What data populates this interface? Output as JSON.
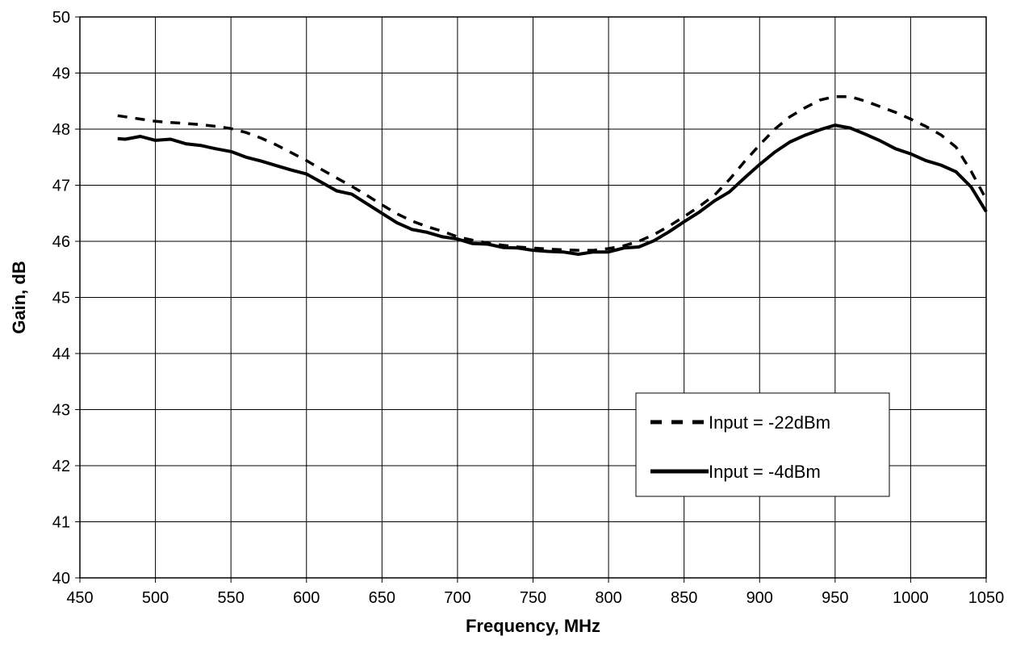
{
  "chart_data": {
    "type": "line",
    "xlabel": "Frequency, MHz",
    "ylabel": "Gain, dB",
    "xlim": [
      450,
      1050
    ],
    "ylim": [
      40,
      50
    ],
    "x_ticks": [
      "450",
      "500",
      "550",
      "600",
      "650",
      "700",
      "750",
      "800",
      "850",
      "900",
      "950",
      "1000",
      "1050"
    ],
    "y_ticks": [
      "40",
      "41",
      "42",
      "43",
      "44",
      "45",
      "46",
      "47",
      "48",
      "49",
      "50"
    ],
    "grid": true,
    "legend_position": "bottom-right",
    "series": [
      {
        "name": "Input = -22dBm",
        "style": "dashed",
        "color": "#000000",
        "x": [
          475,
          480,
          490,
          500,
          510,
          520,
          530,
          540,
          550,
          560,
          570,
          580,
          590,
          600,
          610,
          620,
          630,
          640,
          650,
          660,
          670,
          680,
          690,
          700,
          710,
          720,
          730,
          740,
          750,
          760,
          770,
          780,
          790,
          800,
          810,
          820,
          830,
          840,
          850,
          860,
          870,
          880,
          890,
          900,
          910,
          920,
          930,
          940,
          950,
          960,
          970,
          980,
          990,
          1000,
          1010,
          1020,
          1030,
          1040,
          1050
        ],
        "y": [
          48.24,
          48.22,
          48.18,
          48.14,
          48.12,
          48.1,
          48.08,
          48.05,
          48.01,
          47.94,
          47.84,
          47.72,
          47.58,
          47.44,
          47.28,
          47.13,
          46.98,
          46.82,
          46.65,
          46.49,
          46.36,
          46.26,
          46.18,
          46.08,
          46.02,
          45.97,
          45.93,
          45.9,
          45.88,
          45.86,
          45.85,
          45.84,
          45.84,
          45.87,
          45.92,
          46.0,
          46.12,
          46.27,
          46.44,
          46.62,
          46.82,
          47.1,
          47.42,
          47.72,
          48.0,
          48.22,
          48.38,
          48.52,
          48.58,
          48.58,
          48.5,
          48.4,
          48.3,
          48.18,
          48.05,
          47.9,
          47.68,
          47.25,
          46.75
        ]
      },
      {
        "name": "Input = -4dBm",
        "style": "solid",
        "color": "#000000",
        "x": [
          475,
          480,
          490,
          500,
          510,
          520,
          530,
          540,
          550,
          560,
          570,
          580,
          590,
          600,
          610,
          620,
          630,
          640,
          650,
          660,
          670,
          680,
          690,
          700,
          710,
          720,
          730,
          740,
          750,
          760,
          770,
          780,
          790,
          800,
          810,
          820,
          830,
          840,
          850,
          860,
          870,
          880,
          890,
          900,
          910,
          920,
          930,
          940,
          950,
          960,
          970,
          980,
          990,
          1000,
          1010,
          1020,
          1030,
          1040,
          1050
        ],
        "y": [
          47.83,
          47.82,
          47.87,
          47.8,
          47.82,
          47.74,
          47.71,
          47.65,
          47.6,
          47.5,
          47.43,
          47.35,
          47.27,
          47.2,
          47.05,
          46.9,
          46.84,
          46.67,
          46.5,
          46.33,
          46.21,
          46.16,
          46.08,
          46.04,
          45.96,
          45.95,
          45.89,
          45.88,
          45.84,
          45.82,
          45.81,
          45.77,
          45.81,
          45.81,
          45.88,
          45.9,
          46.01,
          46.17,
          46.35,
          46.52,
          46.72,
          46.88,
          47.13,
          47.37,
          47.59,
          47.77,
          47.89,
          47.99,
          48.07,
          48.02,
          47.91,
          47.79,
          47.65,
          47.56,
          47.44,
          47.36,
          47.24,
          46.97,
          46.53
        ]
      }
    ]
  }
}
